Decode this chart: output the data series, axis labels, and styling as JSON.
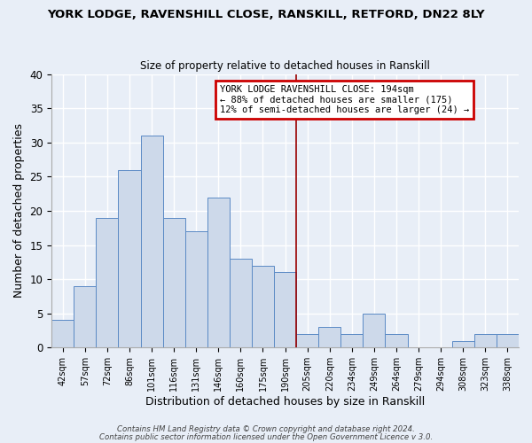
{
  "title": "YORK LODGE, RAVENSHILL CLOSE, RANSKILL, RETFORD, DN22 8LY",
  "subtitle": "Size of property relative to detached houses in Ranskill",
  "xlabel": "Distribution of detached houses by size in Ranskill",
  "ylabel": "Number of detached properties",
  "categories": [
    "42sqm",
    "57sqm",
    "72sqm",
    "86sqm",
    "101sqm",
    "116sqm",
    "131sqm",
    "146sqm",
    "160sqm",
    "175sqm",
    "190sqm",
    "205sqm",
    "220sqm",
    "234sqm",
    "249sqm",
    "264sqm",
    "279sqm",
    "294sqm",
    "308sqm",
    "323sqm",
    "338sqm"
  ],
  "values": [
    4,
    9,
    19,
    26,
    31,
    19,
    17,
    22,
    13,
    12,
    11,
    2,
    3,
    2,
    5,
    2,
    0,
    0,
    1,
    2,
    2
  ],
  "bar_color": "#cdd9ea",
  "bar_edge_color": "#5b8ac5",
  "ylim": [
    0,
    40
  ],
  "yticks": [
    0,
    5,
    10,
    15,
    20,
    25,
    30,
    35,
    40
  ],
  "vline_color": "#990000",
  "annotation_title": "YORK LODGE RAVENSHILL CLOSE: 194sqm",
  "annotation_line1": "← 88% of detached houses are smaller (175)",
  "annotation_line2": "12% of semi-detached houses are larger (24) →",
  "annotation_box_color": "#cc0000",
  "footer1": "Contains HM Land Registry data © Crown copyright and database right 2024.",
  "footer2": "Contains public sector information licensed under the Open Government Licence v 3.0.",
  "background_color": "#e8eef7",
  "grid_color": "#ffffff"
}
